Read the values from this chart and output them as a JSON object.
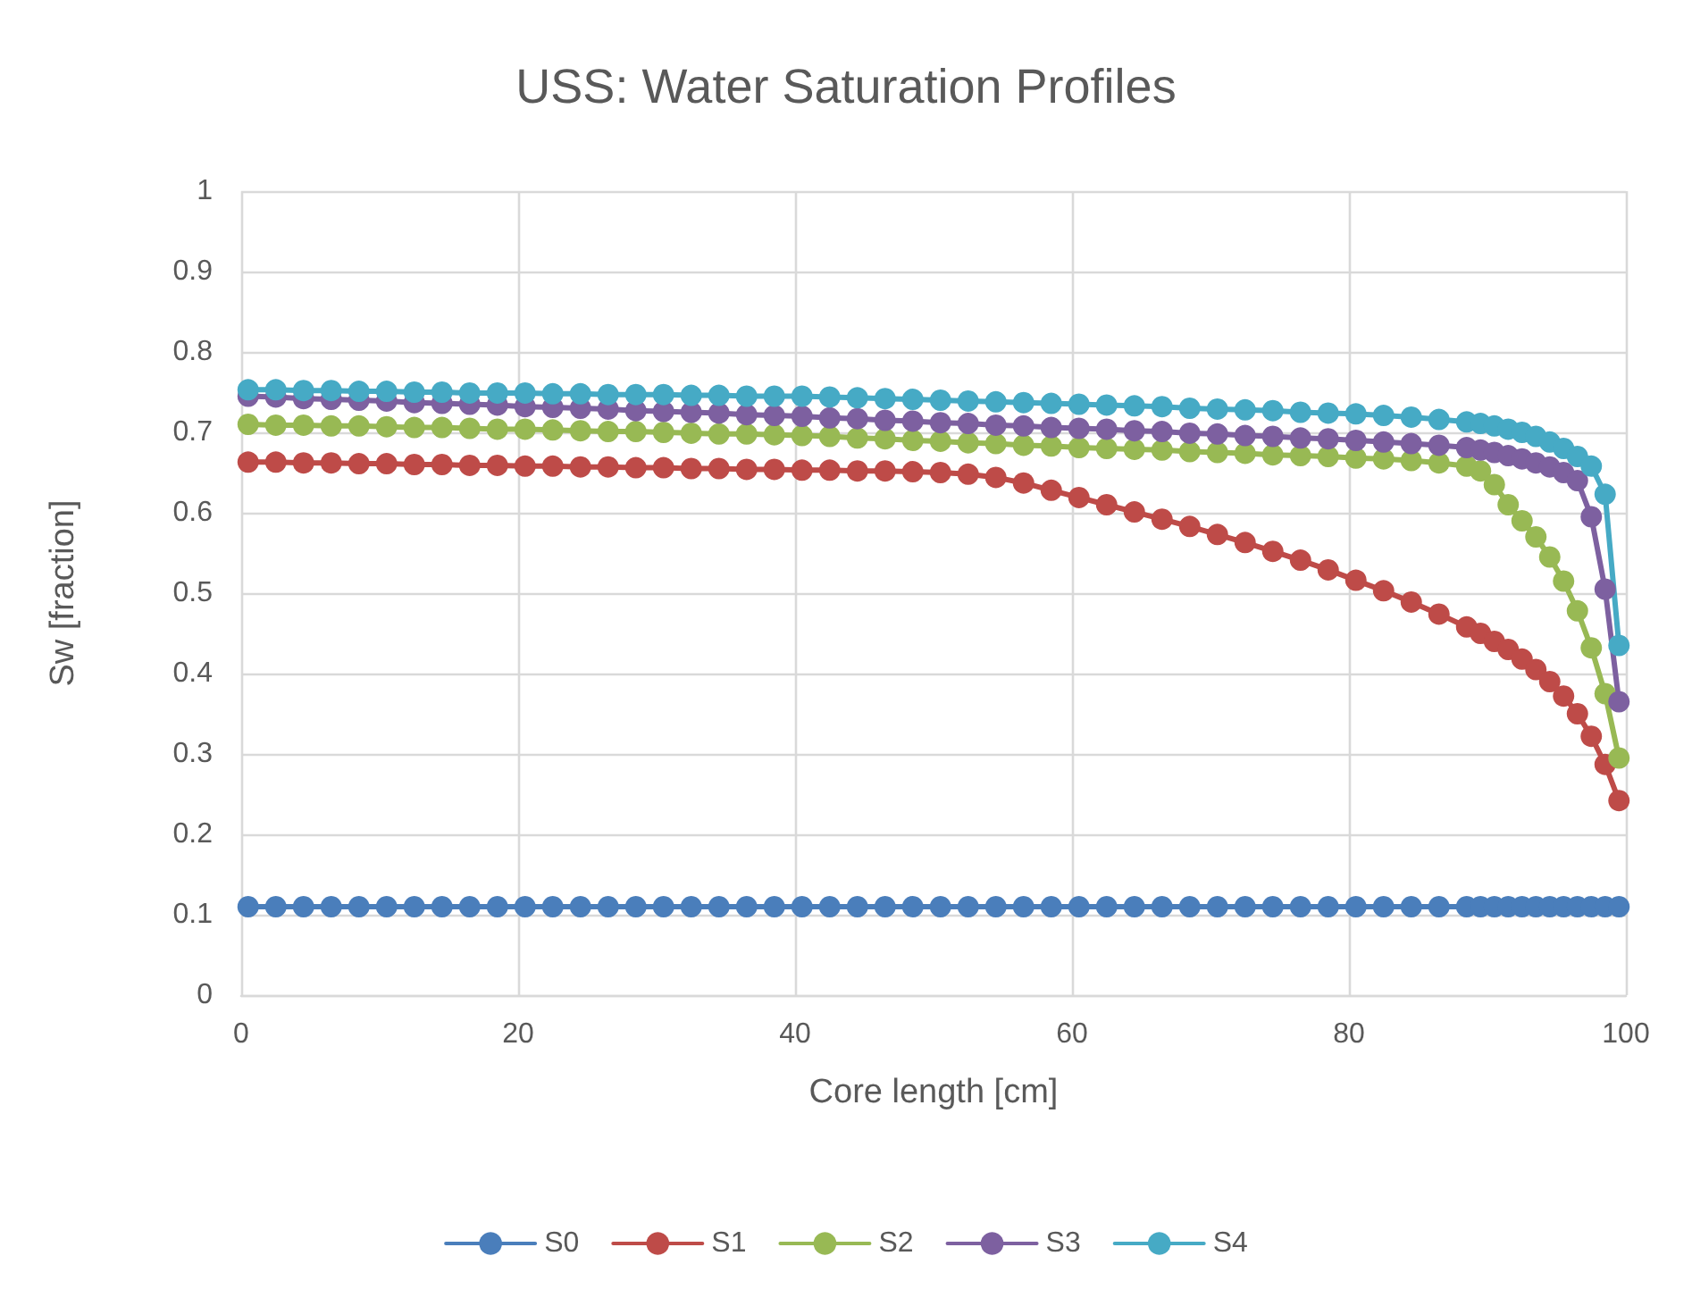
{
  "chart_data": {
    "type": "line",
    "title": "USS: Water Saturation Profiles",
    "xlabel": "Core length [cm]",
    "ylabel": "Sw [fraction]",
    "x": [
      0.5,
      2.5,
      4.5,
      6.5,
      8.5,
      10.5,
      12.5,
      14.5,
      16.5,
      18.5,
      20.5,
      22.5,
      24.5,
      26.5,
      28.5,
      30.5,
      32.5,
      34.5,
      36.5,
      38.5,
      40.5,
      42.5,
      44.5,
      46.5,
      48.5,
      50.5,
      52.5,
      54.5,
      56.5,
      58.5,
      60.5,
      62.5,
      64.5,
      66.5,
      68.5,
      70.5,
      72.5,
      74.5,
      76.5,
      78.5,
      80.5,
      82.5,
      84.5,
      86.5,
      88.5,
      89.5,
      90.5,
      91.5,
      92.5,
      93.5,
      94.5,
      95.5,
      96.5,
      97.5,
      98.5,
      99.5
    ],
    "series": [
      {
        "name": "S0",
        "color": "#4a7ebb",
        "values": [
          0.11,
          0.11,
          0.11,
          0.11,
          0.11,
          0.11,
          0.11,
          0.11,
          0.11,
          0.11,
          0.11,
          0.11,
          0.11,
          0.11,
          0.11,
          0.11,
          0.11,
          0.11,
          0.11,
          0.11,
          0.11,
          0.11,
          0.11,
          0.11,
          0.11,
          0.11,
          0.11,
          0.11,
          0.11,
          0.11,
          0.11,
          0.11,
          0.11,
          0.11,
          0.11,
          0.11,
          0.11,
          0.11,
          0.11,
          0.11,
          0.11,
          0.11,
          0.11,
          0.11,
          0.11,
          0.11,
          0.11,
          0.11,
          0.11,
          0.11,
          0.11,
          0.11,
          0.11,
          0.11,
          0.11,
          0.11
        ]
      },
      {
        "name": "S1",
        "color": "#be4b48",
        "values": [
          0.663,
          0.663,
          0.662,
          0.662,
          0.661,
          0.661,
          0.66,
          0.66,
          0.659,
          0.659,
          0.658,
          0.658,
          0.657,
          0.657,
          0.656,
          0.656,
          0.655,
          0.655,
          0.654,
          0.654,
          0.653,
          0.653,
          0.652,
          0.652,
          0.651,
          0.65,
          0.648,
          0.644,
          0.637,
          0.628,
          0.619,
          0.61,
          0.601,
          0.592,
          0.583,
          0.573,
          0.563,
          0.552,
          0.541,
          0.529,
          0.516,
          0.503,
          0.489,
          0.474,
          0.458,
          0.45,
          0.44,
          0.43,
          0.418,
          0.405,
          0.39,
          0.372,
          0.35,
          0.322,
          0.287,
          0.242
        ]
      },
      {
        "name": "S2",
        "color": "#98b954",
        "values": [
          0.71,
          0.709,
          0.709,
          0.708,
          0.708,
          0.707,
          0.706,
          0.706,
          0.705,
          0.704,
          0.704,
          0.703,
          0.702,
          0.701,
          0.701,
          0.7,
          0.699,
          0.698,
          0.698,
          0.697,
          0.696,
          0.695,
          0.693,
          0.692,
          0.69,
          0.689,
          0.687,
          0.686,
          0.684,
          0.683,
          0.681,
          0.68,
          0.679,
          0.678,
          0.676,
          0.675,
          0.674,
          0.672,
          0.671,
          0.67,
          0.668,
          0.667,
          0.665,
          0.662,
          0.658,
          0.652,
          0.635,
          0.61,
          0.59,
          0.57,
          0.545,
          0.515,
          0.478,
          0.432,
          0.375,
          0.295
        ]
      },
      {
        "name": "S3",
        "color": "#7d60a0",
        "values": [
          0.745,
          0.744,
          0.742,
          0.741,
          0.74,
          0.739,
          0.737,
          0.736,
          0.735,
          0.734,
          0.732,
          0.731,
          0.73,
          0.729,
          0.727,
          0.726,
          0.725,
          0.724,
          0.722,
          0.721,
          0.72,
          0.718,
          0.717,
          0.715,
          0.714,
          0.712,
          0.711,
          0.709,
          0.708,
          0.706,
          0.705,
          0.704,
          0.702,
          0.701,
          0.699,
          0.698,
          0.696,
          0.695,
          0.693,
          0.692,
          0.69,
          0.688,
          0.686,
          0.684,
          0.681,
          0.678,
          0.675,
          0.671,
          0.667,
          0.662,
          0.657,
          0.65,
          0.64,
          0.595,
          0.505,
          0.365
        ]
      },
      {
        "name": "S4",
        "color": "#46aac5",
        "values": [
          0.753,
          0.753,
          0.752,
          0.752,
          0.751,
          0.751,
          0.75,
          0.75,
          0.749,
          0.749,
          0.749,
          0.748,
          0.748,
          0.747,
          0.747,
          0.747,
          0.746,
          0.746,
          0.745,
          0.745,
          0.745,
          0.744,
          0.743,
          0.742,
          0.741,
          0.74,
          0.739,
          0.738,
          0.737,
          0.736,
          0.735,
          0.734,
          0.733,
          0.732,
          0.73,
          0.729,
          0.728,
          0.727,
          0.725,
          0.724,
          0.723,
          0.721,
          0.719,
          0.716,
          0.713,
          0.711,
          0.708,
          0.704,
          0.7,
          0.695,
          0.688,
          0.68,
          0.67,
          0.658,
          0.623,
          0.435
        ]
      }
    ],
    "xlim": [
      0,
      100
    ],
    "xticks": [
      0,
      20,
      40,
      60,
      80,
      100
    ],
    "ylim": [
      0,
      1
    ],
    "yticks": [
      0,
      0.1,
      0.2,
      0.3,
      0.4,
      0.5,
      0.6,
      0.7,
      0.8,
      0.9,
      1
    ],
    "grid": true,
    "legend": "bottom",
    "marker": "circle",
    "line_style": "solid"
  }
}
